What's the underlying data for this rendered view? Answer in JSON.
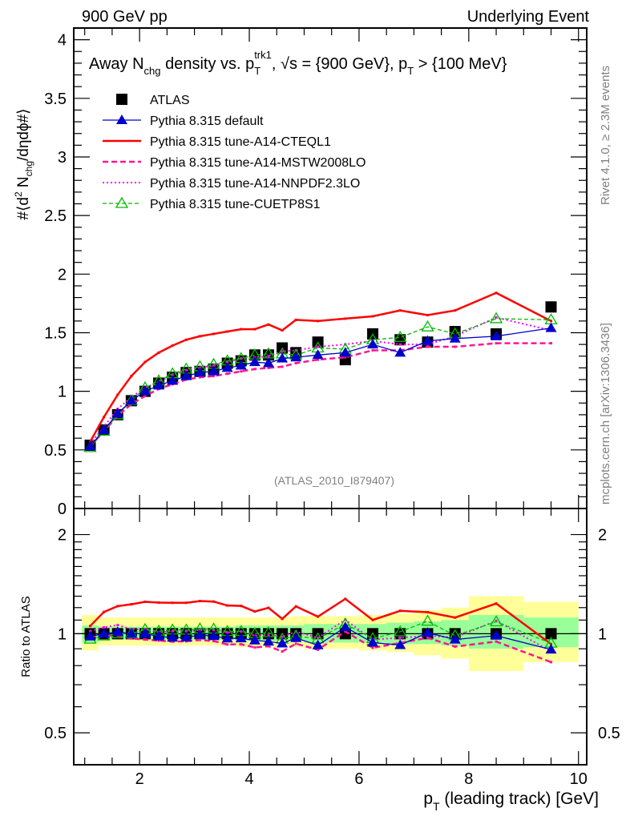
{
  "header": {
    "left": "900 GeV pp",
    "right": "Underlying Event"
  },
  "side_labels": {
    "rivet": "Rivet 4.1.0, ≥ 2.3M events",
    "mcplots": "mcplots.cern.ch [arXiv:1306.3436]"
  },
  "chart_data": [
    {
      "type": "line",
      "panel": "main",
      "title_parts": {
        "a": "Away N",
        "a_sub": "chg",
        "b": " density vs. p",
        "b_sub": "T",
        "b_sup": "trk1",
        "c": ", √s = {900 GeV}, p",
        "c_sub": "T",
        "d": " > {100 MeV}"
      },
      "ylabel": "#⟨d² N_chg/dηdϕ#⟩",
      "ylabel_parts": {
        "pre": "#⟨d",
        "sup": "2",
        "mid": " N",
        "sub": "chg",
        "post": "/dηdϕ#⟩"
      },
      "xlim": [
        0.8,
        10.15
      ],
      "ylim": [
        0,
        4.1
      ],
      "yticks": [
        0,
        0.5,
        1,
        1.5,
        2,
        2.5,
        3,
        3.5,
        4
      ],
      "ytick_labels": [
        "0",
        "0.5",
        "1",
        "1.5",
        "2",
        "2.5",
        "3",
        "3.5",
        "4"
      ],
      "analysis_label": "(ATLAS_2010_I879407)",
      "legend_position": "top-left",
      "x": [
        1.1,
        1.35,
        1.6,
        1.85,
        2.1,
        2.35,
        2.6,
        2.85,
        3.1,
        3.35,
        3.6,
        3.85,
        4.1,
        4.35,
        4.6,
        4.85,
        5.25,
        5.75,
        6.25,
        6.75,
        7.25,
        7.75,
        8.5,
        9.5
      ],
      "series": [
        {
          "name": "ATLAS",
          "color": "#000000",
          "style": "marker-square",
          "values": [
            0.54,
            0.67,
            0.8,
            0.92,
            1.0,
            1.07,
            1.12,
            1.16,
            1.17,
            1.19,
            1.24,
            1.26,
            1.31,
            1.31,
            1.37,
            1.33,
            1.42,
            1.27,
            1.49,
            1.44,
            1.42,
            1.51,
            1.49,
            1.72
          ]
        },
        {
          "name": "Pythia 8.315 default",
          "color": "#0000cc",
          "style": "solid-triangle",
          "values": [
            0.53,
            0.67,
            0.81,
            0.92,
            1.0,
            1.05,
            1.09,
            1.13,
            1.16,
            1.17,
            1.2,
            1.22,
            1.25,
            1.24,
            1.28,
            1.29,
            1.31,
            1.33,
            1.4,
            1.33,
            1.43,
            1.45,
            1.47,
            1.54
          ]
        },
        {
          "name": "Pythia 8.315 tune-A14-CTEQL1",
          "color": "#ff0000",
          "style": "solid-thick",
          "values": [
            0.57,
            0.78,
            0.97,
            1.13,
            1.25,
            1.33,
            1.39,
            1.44,
            1.47,
            1.49,
            1.51,
            1.53,
            1.53,
            1.57,
            1.52,
            1.61,
            1.6,
            1.62,
            1.64,
            1.69,
            1.65,
            1.69,
            1.84,
            1.6
          ]
        },
        {
          "name": "Pythia 8.315 tune-A14-MSTW2008LO",
          "color": "#ff1493",
          "style": "dashed-thick",
          "values": [
            0.53,
            0.66,
            0.79,
            0.89,
            0.96,
            1.02,
            1.06,
            1.1,
            1.12,
            1.13,
            1.15,
            1.17,
            1.19,
            1.2,
            1.21,
            1.24,
            1.27,
            1.29,
            1.35,
            1.35,
            1.38,
            1.38,
            1.41,
            1.41
          ]
        },
        {
          "name": "Pythia 8.315 tune-A14-NNPDF2.3LO",
          "color": "#ff00ff",
          "style": "dotted",
          "values": [
            0.55,
            0.7,
            0.85,
            0.95,
            1.03,
            1.08,
            1.14,
            1.18,
            1.2,
            1.22,
            1.25,
            1.28,
            1.29,
            1.3,
            1.34,
            1.35,
            1.38,
            1.4,
            1.43,
            1.4,
            1.4,
            1.47,
            1.63,
            1.52
          ]
        },
        {
          "name": "Pythia 8.315 tune-CUETP8S1",
          "color": "#00bb00",
          "style": "dashed-open-triangle",
          "values": [
            0.52,
            0.66,
            0.8,
            0.92,
            1.03,
            1.09,
            1.15,
            1.19,
            1.21,
            1.23,
            1.26,
            1.28,
            1.31,
            1.32,
            1.32,
            1.31,
            1.37,
            1.36,
            1.44,
            1.46,
            1.55,
            1.49,
            1.62,
            1.61
          ]
        }
      ]
    },
    {
      "type": "line",
      "panel": "ratio",
      "ylabel": "Ratio to ATLAS",
      "yscale": "log",
      "ylim": [
        0.4,
        2.4
      ],
      "yticks": [
        0.5,
        1,
        2
      ],
      "ytick_labels": [
        "0.5",
        "1",
        "2"
      ],
      "xlabel_parts": {
        "pre": "p",
        "sub": "T",
        "post": " (leading track) [GeV]"
      },
      "xlabel": "p_T (leading track) [GeV]",
      "xlim": [
        0.8,
        10.15
      ],
      "xticks": [
        2,
        4,
        6,
        8,
        10
      ],
      "xtick_labels": [
        "2",
        "4",
        "6",
        "8",
        "10"
      ],
      "bands": {
        "edges": [
          0.95,
          1.25,
          1.5,
          1.75,
          2.0,
          2.25,
          2.5,
          2.75,
          3.0,
          3.25,
          3.5,
          3.75,
          4.0,
          4.25,
          4.5,
          4.75,
          5.0,
          5.5,
          6.0,
          6.5,
          7.0,
          7.5,
          8.0,
          9.0,
          10.0
        ],
        "total_low": [
          0.89,
          0.92,
          0.92,
          0.92,
          0.92,
          0.92,
          0.92,
          0.92,
          0.92,
          0.92,
          0.92,
          0.91,
          0.91,
          0.91,
          0.91,
          0.91,
          0.9,
          0.9,
          0.89,
          0.88,
          0.86,
          0.84,
          0.77,
          0.82
        ],
        "total_high": [
          1.14,
          1.12,
          1.12,
          1.12,
          1.12,
          1.12,
          1.12,
          1.12,
          1.12,
          1.12,
          1.12,
          1.12,
          1.12,
          1.12,
          1.12,
          1.13,
          1.13,
          1.13,
          1.14,
          1.15,
          1.18,
          1.2,
          1.3,
          1.25
        ],
        "stat_low": [
          0.94,
          0.96,
          0.96,
          0.96,
          0.96,
          0.96,
          0.96,
          0.96,
          0.96,
          0.96,
          0.96,
          0.95,
          0.95,
          0.95,
          0.95,
          0.95,
          0.94,
          0.94,
          0.94,
          0.93,
          0.93,
          0.92,
          0.9,
          0.91
        ],
        "stat_high": [
          1.06,
          1.05,
          1.05,
          1.05,
          1.05,
          1.05,
          1.05,
          1.05,
          1.05,
          1.05,
          1.05,
          1.06,
          1.06,
          1.06,
          1.06,
          1.06,
          1.07,
          1.07,
          1.07,
          1.08,
          1.09,
          1.1,
          1.14,
          1.12
        ],
        "total_color": "#ffff99",
        "stat_color": "#99ff99"
      }
    }
  ]
}
